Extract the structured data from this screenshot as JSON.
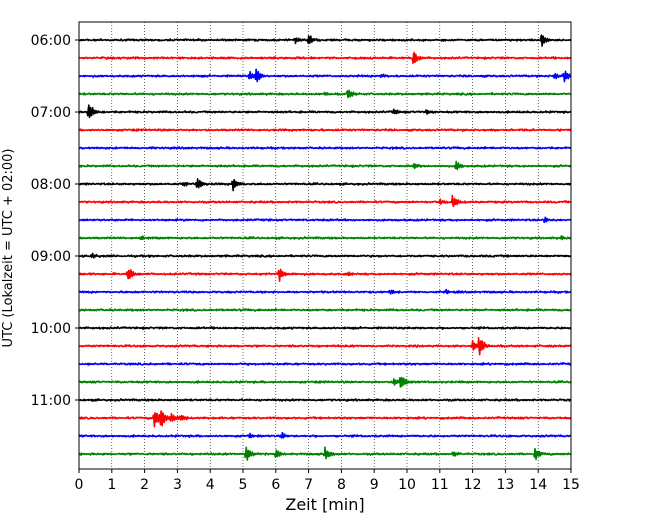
{
  "chart_data": {
    "type": "line",
    "title": "",
    "xlabel": "Zeit  [min]",
    "ylabel": "UTC (Lokalzeit = UTC + 02:00)",
    "xlim": [
      0,
      15
    ],
    "x_ticks": [
      "0",
      "1",
      "2",
      "3",
      "4",
      "5",
      "6",
      "7",
      "8",
      "9",
      "10",
      "11",
      "12",
      "13",
      "14",
      "15"
    ],
    "y_tick_labels": [
      "06:00",
      "07:00",
      "08:00",
      "09:00",
      "10:00",
      "11:00"
    ],
    "row_interval_minutes": 15,
    "first_row_time": "06:00",
    "colors": [
      "#000000",
      "#ff0000",
      "#0000ff",
      "#008000"
    ],
    "grid": {
      "vertical_dotted": true,
      "horizontal": false
    },
    "series": [
      {
        "time": "06:00",
        "color": "#000000",
        "events": [
          {
            "x": 7.0,
            "amp": 0.8
          },
          {
            "x": 14.1,
            "amp": 0.9
          },
          {
            "x": 6.6,
            "amp": 0.4
          }
        ]
      },
      {
        "time": "06:15",
        "color": "#ff0000",
        "events": [
          {
            "x": 10.2,
            "amp": 0.9
          }
        ]
      },
      {
        "time": "06:30",
        "color": "#0000ff",
        "events": [
          {
            "x": 5.4,
            "amp": 1.0
          },
          {
            "x": 5.2,
            "amp": 0.6
          },
          {
            "x": 14.8,
            "amp": 0.7
          },
          {
            "x": 14.5,
            "amp": 0.4
          },
          {
            "x": 9.2,
            "amp": 0.3
          }
        ]
      },
      {
        "time": "06:45",
        "color": "#008000",
        "events": [
          {
            "x": 8.2,
            "amp": 0.7
          },
          {
            "x": 7.5,
            "amp": 0.3
          }
        ]
      },
      {
        "time": "07:00",
        "color": "#000000",
        "events": [
          {
            "x": 0.3,
            "amp": 1.3
          },
          {
            "x": 9.6,
            "amp": 0.5
          },
          {
            "x": 10.6,
            "amp": 0.4
          }
        ]
      },
      {
        "time": "07:15",
        "color": "#ff0000",
        "events": []
      },
      {
        "time": "07:30",
        "color": "#0000ff",
        "events": []
      },
      {
        "time": "07:45",
        "color": "#008000",
        "events": [
          {
            "x": 10.2,
            "amp": 0.5
          },
          {
            "x": 11.5,
            "amp": 0.7
          }
        ]
      },
      {
        "time": "08:00",
        "color": "#000000",
        "events": [
          {
            "x": 3.6,
            "amp": 0.8
          },
          {
            "x": 4.7,
            "amp": 0.9
          },
          {
            "x": 3.2,
            "amp": 0.3
          }
        ]
      },
      {
        "time": "08:15",
        "color": "#ff0000",
        "events": [
          {
            "x": 11.4,
            "amp": 1.1
          },
          {
            "x": 11.0,
            "amp": 0.4
          }
        ]
      },
      {
        "time": "08:30",
        "color": "#0000ff",
        "events": [
          {
            "x": 14.2,
            "amp": 0.4
          }
        ]
      },
      {
        "time": "08:45",
        "color": "#008000",
        "events": [
          {
            "x": 14.7,
            "amp": 0.4
          },
          {
            "x": 1.9,
            "amp": 0.3
          }
        ]
      },
      {
        "time": "09:00",
        "color": "#000000",
        "events": [
          {
            "x": 0.4,
            "amp": 0.3
          }
        ]
      },
      {
        "time": "09:15",
        "color": "#ff0000",
        "events": [
          {
            "x": 1.5,
            "amp": 1.0
          },
          {
            "x": 6.1,
            "amp": 1.0
          },
          {
            "x": 8.2,
            "amp": 0.3
          }
        ]
      },
      {
        "time": "09:30",
        "color": "#0000ff",
        "events": [
          {
            "x": 9.5,
            "amp": 0.3
          },
          {
            "x": 11.2,
            "amp": 0.3
          }
        ]
      },
      {
        "time": "09:45",
        "color": "#008000",
        "events": []
      },
      {
        "time": "10:00",
        "color": "#000000",
        "events": []
      },
      {
        "time": "10:15",
        "color": "#ff0000",
        "events": [
          {
            "x": 12.2,
            "amp": 1.4
          },
          {
            "x": 12.0,
            "amp": 0.7
          }
        ]
      },
      {
        "time": "10:30",
        "color": "#0000ff",
        "events": []
      },
      {
        "time": "10:45",
        "color": "#008000",
        "events": [
          {
            "x": 9.8,
            "amp": 1.1
          },
          {
            "x": 9.6,
            "amp": 0.5
          }
        ]
      },
      {
        "time": "11:00",
        "color": "#000000",
        "events": []
      },
      {
        "time": "11:15",
        "color": "#ff0000",
        "events": [
          {
            "x": 2.5,
            "amp": 1.6
          },
          {
            "x": 2.3,
            "amp": 1.2
          },
          {
            "x": 2.8,
            "amp": 0.8
          },
          {
            "x": 3.1,
            "amp": 0.5
          }
        ]
      },
      {
        "time": "11:30",
        "color": "#0000ff",
        "events": [
          {
            "x": 6.2,
            "amp": 0.4
          },
          {
            "x": 5.2,
            "amp": 0.3
          }
        ]
      },
      {
        "time": "11:45",
        "color": "#008000",
        "events": [
          {
            "x": 5.1,
            "amp": 1.0
          },
          {
            "x": 6.0,
            "amp": 0.7
          },
          {
            "x": 7.5,
            "amp": 0.9
          },
          {
            "x": 13.9,
            "amp": 1.0
          },
          {
            "x": 11.4,
            "amp": 0.4
          }
        ]
      }
    ]
  }
}
